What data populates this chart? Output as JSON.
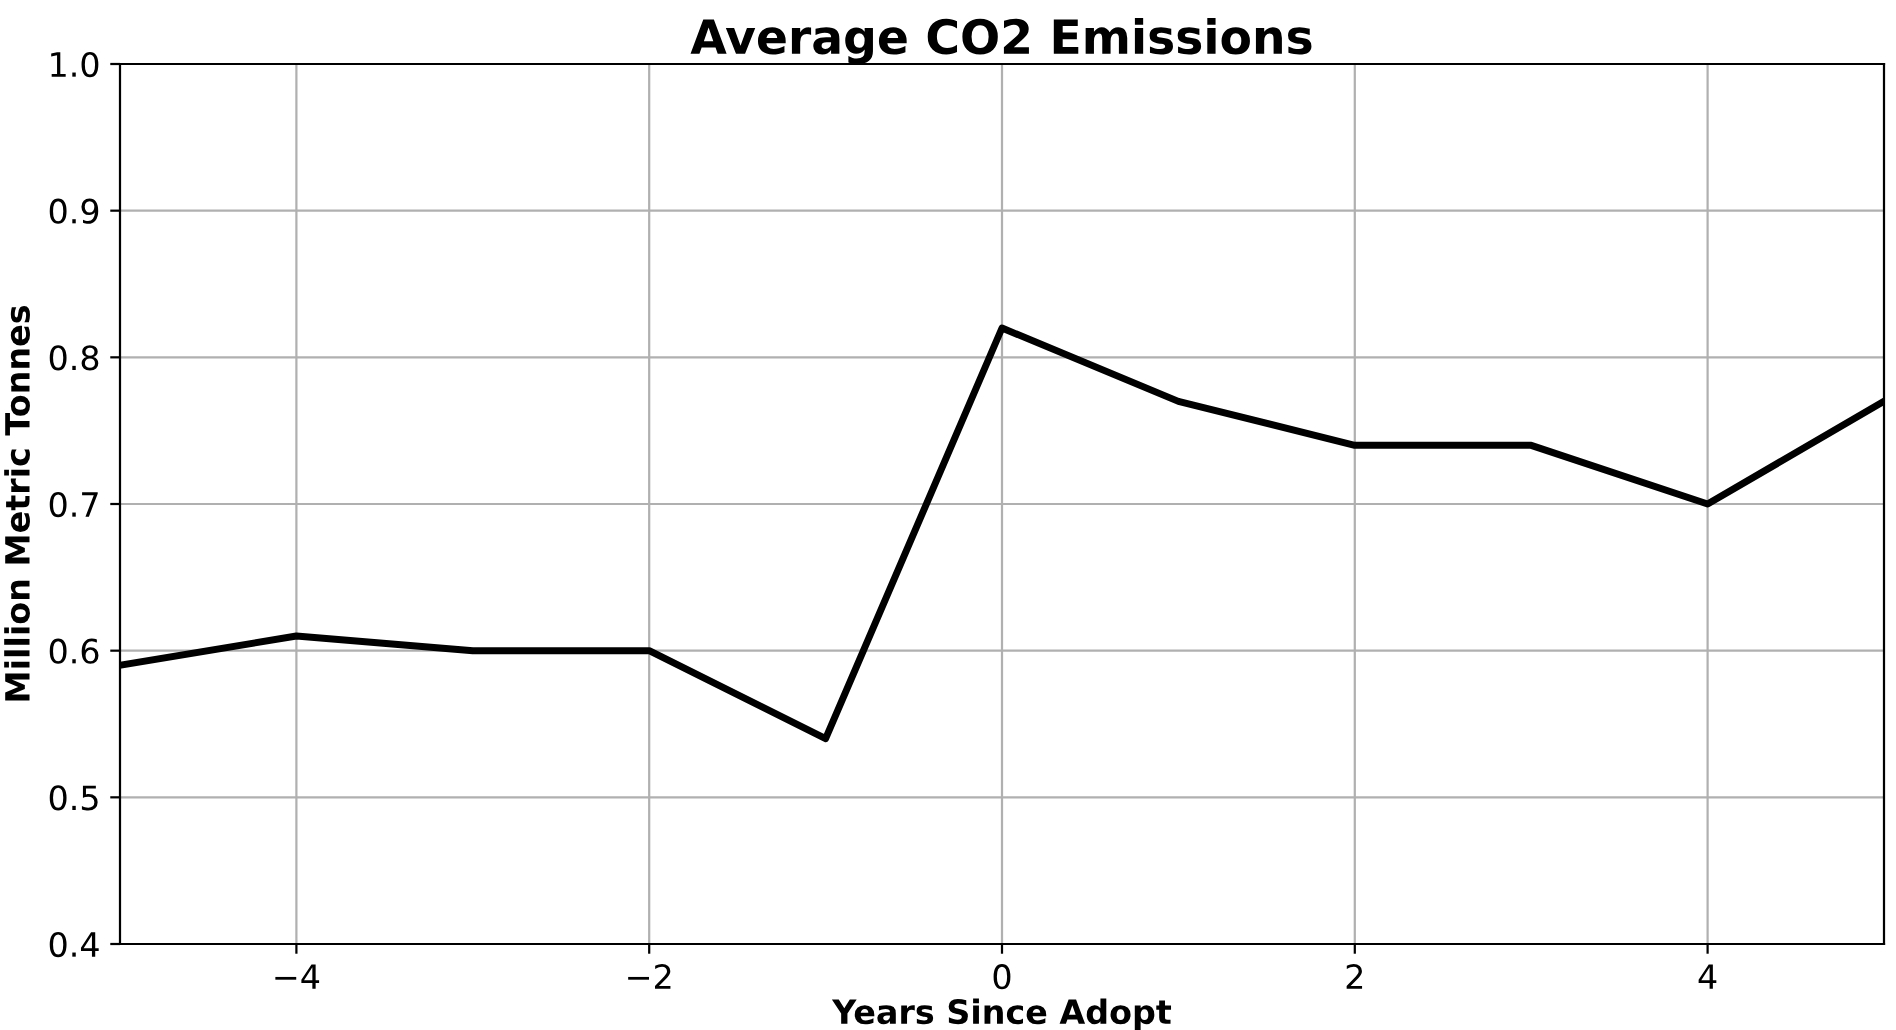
{
  "chart_data": {
    "type": "line",
    "title": "Average CO2 Emissions",
    "xlabel": "Years Since Adopt",
    "ylabel": "Million Metric Tonnes",
    "x": [
      -5,
      -4,
      -3,
      -2,
      -1,
      0,
      1,
      2,
      3,
      4,
      5
    ],
    "series": [
      {
        "color": "#000000",
        "values": [
          0.59,
          0.61,
          0.6,
          0.6,
          0.54,
          0.82,
          0.77,
          0.74,
          0.74,
          0.7,
          0.77
        ]
      }
    ],
    "xlim": [
      -5,
      5
    ],
    "xticks": [
      {
        "value": -4,
        "label": "−4"
      },
      {
        "value": -2,
        "label": "−2"
      },
      0,
      2,
      4
    ],
    "ylim": [
      0.4,
      1.0
    ],
    "yticks": [
      {
        "value": 0.4,
        "label": "0.4"
      },
      {
        "value": 0.5,
        "label": "0.5"
      },
      {
        "value": 0.6,
        "label": "0.6"
      },
      {
        "value": 0.7,
        "label": "0.7"
      },
      {
        "value": 0.8,
        "label": "0.8"
      },
      {
        "value": 0.9,
        "label": "0.9"
      },
      {
        "value": 1.0,
        "label": "1.0"
      }
    ],
    "grid": true,
    "line_style": "solid"
  }
}
